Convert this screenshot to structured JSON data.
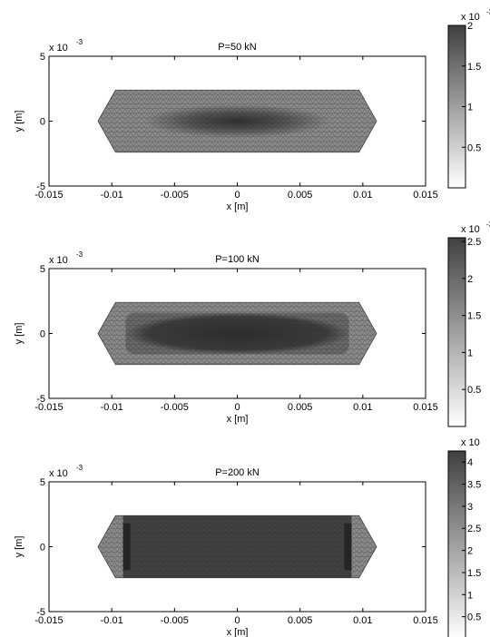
{
  "chart_data": [
    {
      "type": "heatmap",
      "title": "P=50 kN",
      "xlabel": "x [m]",
      "ylabel": "y [m]",
      "xlim": [
        -0.015,
        0.015
      ],
      "ylim": [
        -0.005,
        0.005
      ],
      "xticks": [
        "-0.015",
        "-0.01",
        "-0.005",
        "0",
        "0.005",
        "0.01",
        "0.015"
      ],
      "yticks": [
        "5",
        "0",
        "-5"
      ],
      "y_exponent": {
        "base": "x 10",
        "power": "-3"
      },
      "mesh_outline": {
        "x": [
          -0.0111,
          -0.0097,
          0.0097,
          0.0111,
          0.0097,
          -0.0097
        ],
        "y": [
          0,
          0.0024,
          0.0024,
          0,
          -0.0024,
          -0.0024
        ]
      },
      "colorbar": {
        "clim": [
          0,
          2
        ],
        "ticks": [
          "2",
          "1.5",
          "1",
          "0.5"
        ],
        "exponent": {
          "base": "x 10",
          "power": "-3"
        }
      },
      "pattern": "center"
    },
    {
      "type": "heatmap",
      "title": "P=100 kN",
      "xlabel": "x [m]",
      "ylabel": "y [m]",
      "xlim": [
        -0.015,
        0.015
      ],
      "ylim": [
        -0.005,
        0.005
      ],
      "xticks": [
        "-0.015",
        "-0.01",
        "-0.005",
        "0",
        "0.005",
        "0.01",
        "0.015"
      ],
      "yticks": [
        "5",
        "0",
        "-5"
      ],
      "y_exponent": {
        "base": "x 10",
        "power": "-3"
      },
      "mesh_outline": {
        "x": [
          -0.0111,
          -0.0097,
          0.0097,
          0.0111,
          0.0097,
          -0.0097
        ],
        "y": [
          0,
          0.0024,
          0.0024,
          0,
          -0.0024,
          -0.0024
        ]
      },
      "colorbar": {
        "clim": [
          0,
          2.55
        ],
        "ticks": [
          "2.5",
          "2",
          "1.5",
          "1",
          "0.5"
        ],
        "exponent": {
          "base": "x 10",
          "power": "-3"
        }
      },
      "pattern": "band"
    },
    {
      "type": "heatmap",
      "title": "P=200 kN",
      "xlabel": "x [m]",
      "ylabel": "y [m]",
      "xlim": [
        -0.015,
        0.015
      ],
      "ylim": [
        -0.005,
        0.005
      ],
      "xticks": [
        "-0.015",
        "-0.01",
        "-0.005",
        "0",
        "0.005",
        "0.01",
        "0.015"
      ],
      "yticks": [
        "5",
        "0",
        "-5"
      ],
      "y_exponent": {
        "base": "x 10",
        "power": "-3"
      },
      "mesh_outline": {
        "x": [
          -0.0111,
          -0.0097,
          0.0097,
          0.0111,
          0.0097,
          -0.0097
        ],
        "y": [
          0,
          0.0024,
          0.0024,
          0,
          -0.0024,
          -0.0024
        ]
      },
      "colorbar": {
        "clim": [
          0,
          4.25
        ],
        "ticks": [
          "4",
          "3.5",
          "3",
          "2.5",
          "2",
          "1.5",
          "1",
          "0.5"
        ],
        "exponent": {
          "base": "x 10",
          "power": ""
        }
      },
      "pattern": "full"
    }
  ]
}
